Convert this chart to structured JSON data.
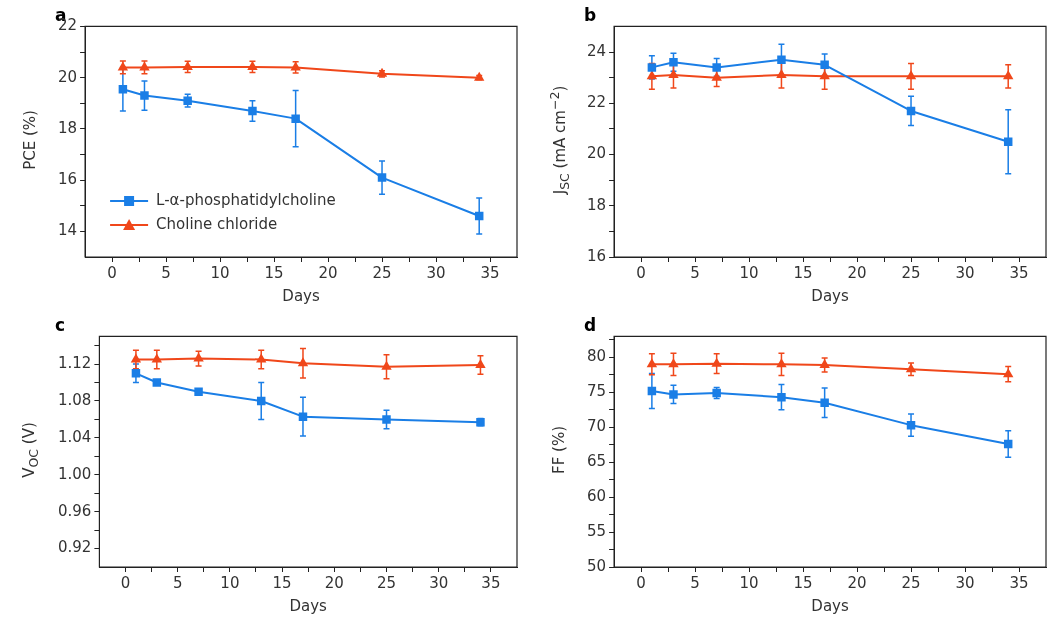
{
  "chart_data": [
    {
      "type": "line",
      "title": "a",
      "xlabel": "Days",
      "ylabel": "PCE (%)",
      "x": [
        1,
        3,
        7,
        13,
        17,
        25,
        34
      ],
      "xlim": [
        -2.5,
        37.5
      ],
      "ylim": [
        13,
        22
      ],
      "xticks": [
        0,
        {
          "value": 2.5,
          "label": null
        },
        5,
        {
          "value": 7.5,
          "label": null
        },
        10,
        {
          "value": 12.5,
          "label": null
        },
        15,
        {
          "value": 17.5,
          "label": null
        },
        20,
        {
          "value": 22.5,
          "label": null
        },
        25,
        {
          "value": 27.5,
          "label": null
        },
        30,
        {
          "value": 32.5,
          "label": null
        },
        35
      ],
      "yticks": [
        14,
        {
          "value": 15,
          "label": null
        },
        16,
        {
          "value": 17,
          "label": null
        },
        18,
        {
          "value": 19,
          "label": null
        },
        20,
        {
          "value": 21,
          "label": null
        },
        22
      ],
      "legend": "bottom left",
      "grid": false,
      "line_style": "solid",
      "series": [
        {
          "name": "L-α-phosphatidylcholine",
          "color": "#1a7ee6",
          "marker": "square",
          "values": [
            19.55,
            19.3,
            19.1,
            18.7,
            18.4,
            16.1,
            14.6
          ],
          "errors": [
            0.85,
            0.57,
            0.25,
            0.4,
            1.1,
            0.65,
            0.7
          ]
        },
        {
          "name": "Choline chloride",
          "color": "#f0471a",
          "marker": "triangle",
          "values": [
            20.4,
            20.4,
            20.42,
            20.42,
            20.4,
            20.15,
            20.0
          ],
          "errors": [
            0.25,
            0.25,
            0.22,
            0.22,
            0.22,
            0.12,
            0.08
          ]
        }
      ]
    },
    {
      "type": "line",
      "title": "b",
      "xlabel": "Days",
      "ylabel": "J$_{SC}$ (mA cm$^{−2}$)",
      "x": [
        1,
        3,
        7,
        13,
        17,
        25,
        34
      ],
      "xlim": [
        -2.5,
        37.5
      ],
      "ylim": [
        16,
        25
      ],
      "xticks": [
        0,
        {
          "value": 2.5,
          "label": null
        },
        5,
        {
          "value": 7.5,
          "label": null
        },
        10,
        {
          "value": 12.5,
          "label": null
        },
        15,
        {
          "value": 17.5,
          "label": null
        },
        20,
        {
          "value": 22.5,
          "label": null
        },
        25,
        {
          "value": 27.5,
          "label": null
        },
        30,
        {
          "value": 32.5,
          "label": null
        },
        35
      ],
      "yticks": [
        16,
        {
          "value": 17,
          "label": null
        },
        18,
        {
          "value": 19,
          "label": null
        },
        20,
        {
          "value": 21,
          "label": null
        },
        22,
        {
          "value": 23,
          "label": null
        },
        24
      ],
      "grid": false,
      "line_style": "solid",
      "series": [
        {
          "color": "#1a7ee6",
          "marker": "square",
          "values": [
            23.4,
            23.6,
            23.4,
            23.7,
            23.5,
            21.7,
            20.5
          ],
          "errors": [
            0.45,
            0.35,
            0.35,
            0.6,
            0.42,
            0.57,
            1.25
          ]
        },
        {
          "color": "#f0471a",
          "marker": "triangle",
          "values": [
            23.05,
            23.1,
            23.0,
            23.1,
            23.05,
            23.05,
            23.05
          ],
          "errors": [
            0.5,
            0.5,
            0.35,
            0.5,
            0.5,
            0.5,
            0.45
          ]
        }
      ]
    },
    {
      "type": "line",
      "title": "c",
      "xlabel": "Days",
      "ylabel": "V$_{OC}$ (V)",
      "x": [
        1,
        3,
        7,
        13,
        17,
        25,
        34
      ],
      "xlim": [
        -2.5,
        37.5
      ],
      "ylim": [
        0.9,
        1.15
      ],
      "xticks": [
        0,
        {
          "value": 2.5,
          "label": null
        },
        5,
        {
          "value": 7.5,
          "label": null
        },
        10,
        {
          "value": 12.5,
          "label": null
        },
        15,
        {
          "value": 17.5,
          "label": null
        },
        20,
        {
          "value": 22.5,
          "label": null
        },
        25,
        {
          "value": 27.5,
          "label": null
        },
        30,
        {
          "value": 32.5,
          "label": null
        },
        35
      ],
      "yticks": [
        0.92,
        {
          "value": 0.94,
          "label": null
        },
        0.96,
        {
          "value": 0.98,
          "label": null
        },
        {
          "value": 1.0,
          "label": "1.00"
        },
        {
          "value": 1.02,
          "label": null
        },
        1.04,
        {
          "value": 1.06,
          "label": null
        },
        1.08,
        {
          "value": 1.1,
          "label": null
        },
        1.12,
        {
          "value": 1.14,
          "label": null
        }
      ],
      "grid": false,
      "line_style": "solid",
      "series": [
        {
          "color": "#1a7ee6",
          "marker": "square",
          "values": [
            1.11,
            1.1,
            1.09,
            1.08,
            1.063,
            1.06,
            1.057
          ],
          "errors": [
            0.01,
            null,
            null,
            0.02,
            0.021,
            0.01,
            0.004
          ]
        },
        {
          "color": "#f0471a",
          "marker": "triangle",
          "values": [
            1.125,
            1.125,
            1.126,
            1.125,
            1.121,
            1.117,
            1.119
          ],
          "errors": [
            0.01,
            0.01,
            0.008,
            0.01,
            0.016,
            0.013,
            0.01
          ]
        }
      ]
    },
    {
      "type": "line",
      "title": "d",
      "xlabel": "Days",
      "ylabel": "FF (%)",
      "x": [
        1,
        3,
        7,
        13,
        17,
        25,
        34
      ],
      "xlim": [
        -2.5,
        37.5
      ],
      "ylim": [
        50,
        83
      ],
      "xticks": [
        0,
        {
          "value": 2.5,
          "label": null
        },
        5,
        {
          "value": 7.5,
          "label": null
        },
        10,
        {
          "value": 12.5,
          "label": null
        },
        15,
        {
          "value": 17.5,
          "label": null
        },
        20,
        {
          "value": 22.5,
          "label": null
        },
        25,
        {
          "value": 27.5,
          "label": null
        },
        30,
        {
          "value": 32.5,
          "label": null
        },
        35
      ],
      "yticks": [
        50,
        {
          "value": 52.5,
          "label": null
        },
        55,
        {
          "value": 57.5,
          "label": null
        },
        60,
        {
          "value": 62.5,
          "label": null
        },
        65,
        {
          "value": 67.5,
          "label": null
        },
        70,
        {
          "value": 72.5,
          "label": null
        },
        75,
        {
          "value": 77.5,
          "label": null
        },
        80,
        {
          "value": 82.5,
          "label": null
        }
      ],
      "grid": false,
      "line_style": "solid",
      "series": [
        {
          "color": "#1a7ee6",
          "marker": "square",
          "values": [
            75.2,
            74.7,
            74.9,
            74.3,
            73.5,
            70.3,
            67.6
          ],
          "errors": [
            2.5,
            1.3,
            0.8,
            1.8,
            2.1,
            1.6,
            1.9
          ]
        },
        {
          "color": "#f0471a",
          "marker": "triangle",
          "values": [
            79.0,
            79.0,
            79.1,
            79.0,
            78.9,
            78.3,
            77.6
          ],
          "errors": [
            1.5,
            1.6,
            1.4,
            1.6,
            1.0,
            0.9,
            1.1
          ]
        }
      ]
    }
  ]
}
